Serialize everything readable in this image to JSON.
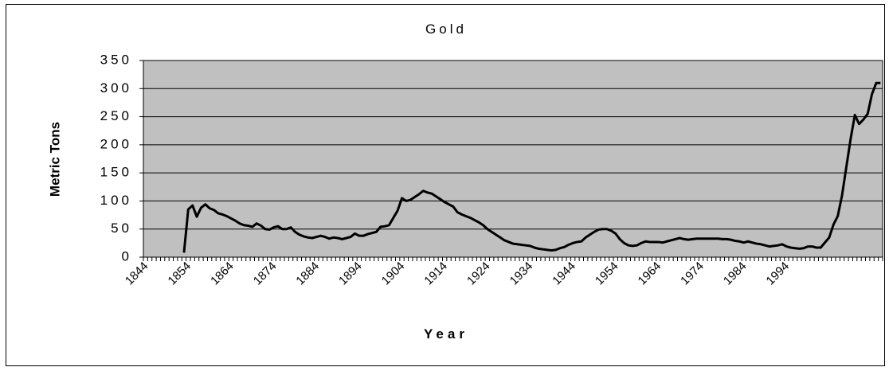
{
  "chart_data": {
    "type": "line",
    "title": "Gold",
    "x_label": "Year",
    "y_label": "Metric Tons",
    "categories": [
      "1844",
      null,
      null,
      null,
      null,
      null,
      null,
      null,
      null,
      null,
      "1854",
      null,
      null,
      null,
      null,
      null,
      null,
      null,
      null,
      null,
      "1864",
      null,
      null,
      null,
      null,
      null,
      null,
      null,
      null,
      null,
      "1874",
      null,
      null,
      null,
      null,
      null,
      null,
      null,
      null,
      null,
      "1884",
      null,
      null,
      null,
      null,
      null,
      null,
      null,
      null,
      null,
      "1894",
      null,
      null,
      null,
      null,
      null,
      null,
      null,
      null,
      null,
      "1904",
      null,
      null,
      null,
      null,
      null,
      null,
      null,
      null,
      null,
      "1914",
      null,
      null,
      null,
      null,
      null,
      null,
      null,
      null,
      null,
      "1924",
      null,
      null,
      null,
      null,
      null,
      null,
      null,
      null,
      null,
      "1934",
      null,
      null,
      null,
      null,
      null,
      null,
      null,
      null,
      null,
      "1944",
      null,
      null,
      null,
      null,
      null,
      null,
      null,
      null,
      null,
      "1954",
      null,
      null,
      null,
      null,
      null,
      null,
      null,
      null,
      null,
      "1964",
      null,
      null,
      null,
      null,
      null,
      null,
      null,
      null,
      null,
      "1974",
      null,
      null,
      null,
      null,
      null,
      null,
      null,
      null,
      null,
      "1984",
      null,
      null,
      null,
      null,
      null,
      null,
      null,
      null,
      null,
      "1994",
      null,
      null,
      null,
      null,
      null,
      null,
      null,
      null,
      null,
      null,
      null,
      null,
      null,
      null,
      null,
      null,
      null,
      null,
      null,
      null,
      null,
      null
    ],
    "values": [
      null,
      null,
      null,
      null,
      null,
      null,
      null,
      null,
      null,
      8,
      85,
      92,
      72,
      88,
      94,
      87,
      84,
      78,
      76,
      73,
      69,
      65,
      60,
      57,
      56,
      54,
      60,
      56,
      50,
      49,
      53,
      55,
      50,
      50,
      53,
      45,
      40,
      37,
      35,
      34,
      36,
      38,
      36,
      33,
      35,
      34,
      32,
      34,
      36,
      42,
      38,
      38,
      41,
      43,
      45,
      54,
      55,
      57,
      70,
      83,
      105,
      100,
      102,
      107,
      112,
      118,
      115,
      113,
      108,
      103,
      98,
      94,
      90,
      80,
      76,
      73,
      70,
      66,
      62,
      57,
      50,
      45,
      40,
      35,
      30,
      27,
      24,
      23,
      22,
      21,
      20,
      17,
      15,
      14,
      13,
      12,
      13,
      16,
      18,
      22,
      25,
      27,
      28,
      35,
      40,
      45,
      49,
      50,
      50,
      47,
      42,
      32,
      25,
      21,
      20,
      21,
      25,
      28,
      27,
      27,
      27,
      26,
      28,
      30,
      32,
      34,
      32,
      31,
      32,
      33,
      33,
      33,
      33,
      33,
      33,
      32,
      32,
      31,
      29,
      28,
      26,
      28,
      26,
      24,
      23,
      21,
      19,
      20,
      21,
      23,
      19,
      17,
      16,
      15,
      16,
      19,
      19,
      17,
      17,
      26,
      35,
      58,
      73,
      110,
      160,
      210,
      253,
      237,
      245,
      255,
      290,
      310,
      310
    ],
    "color": "#000000",
    "ylim": [
      0,
      350
    ],
    "yticks": [
      0,
      50,
      100,
      150,
      200,
      250,
      300,
      350
    ],
    "grid": true,
    "plot_background": "#c0c0c0"
  }
}
